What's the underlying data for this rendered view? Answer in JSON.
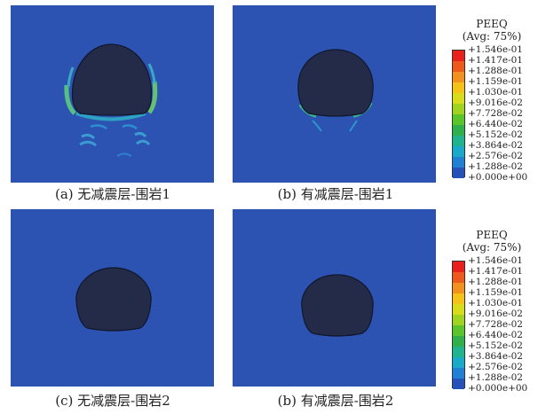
{
  "panels": [
    {
      "caption": "(a) 无减震层-围岩1",
      "strain": "high"
    },
    {
      "caption": "(b) 有减震层-围岩1",
      "strain": "low"
    },
    {
      "caption": "(c) 无减震层-围岩2",
      "strain": "none"
    },
    {
      "caption": "(b) 有减震层-围岩2",
      "strain": "none"
    }
  ],
  "legend": {
    "title": "PEEQ",
    "subtitle": "(Avg: 75%)",
    "values": [
      "+1.546e-01",
      "+1.417e-01",
      "+1.288e-01",
      "+1.159e-01",
      "+1.030e-01",
      "+9.016e-02",
      "+7.728e-02",
      "+6.440e-02",
      "+5.152e-02",
      "+3.864e-02",
      "+2.576e-02",
      "+1.288e-02",
      "+0.000e+00"
    ],
    "colors": [
      "#e8211d",
      "#ee5a1c",
      "#f2911d",
      "#f5c318",
      "#d9dc1a",
      "#9fd31f",
      "#5bc42a",
      "#2fb04a",
      "#1fb48e",
      "#19a9c9",
      "#1f80d4",
      "#2552b8"
    ]
  },
  "colors": {
    "background": "#2c53b2",
    "tunnel": "#232b48",
    "tunnel_edge": "#11162a"
  }
}
